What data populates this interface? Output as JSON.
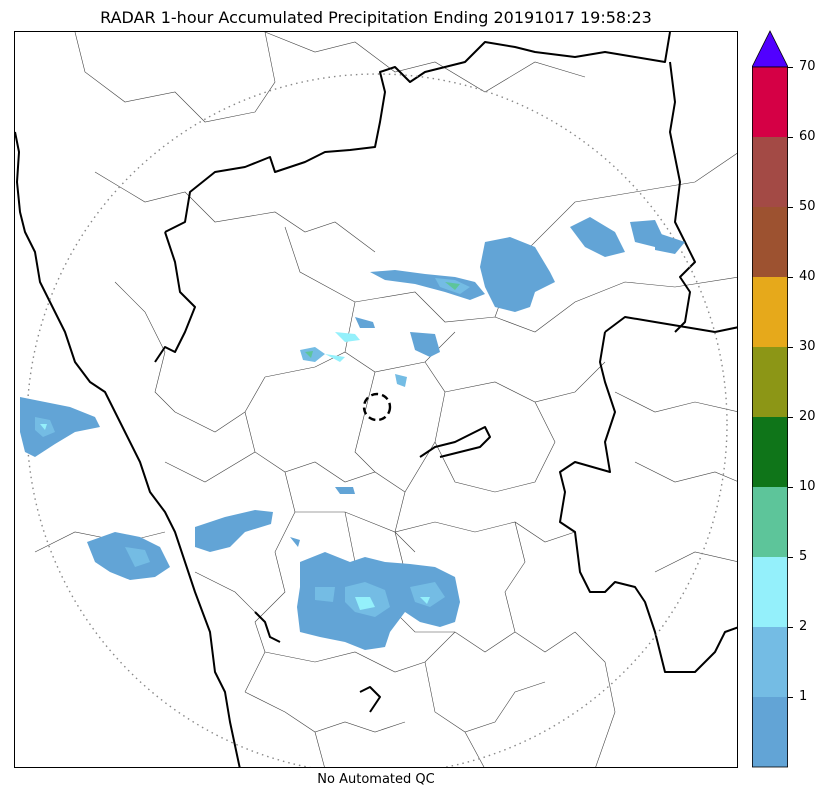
{
  "title": "RADAR 1-hour Accumulated Precipitation Ending 20191017 19:58:23",
  "footer_note": "No Automated QC",
  "colorbar": {
    "ticks": [
      "1",
      "2",
      "5",
      "10",
      "20",
      "30",
      "40",
      "50",
      "60",
      "70"
    ],
    "bins": [
      {
        "upper": 1,
        "color": "#62A4D6"
      },
      {
        "upper": 2,
        "color": "#74BCE4"
      },
      {
        "upper": 5,
        "color": "#94F0FB"
      },
      {
        "upper": 10,
        "color": "#5DC59A"
      },
      {
        "upper": 20,
        "color": "#0F7519"
      },
      {
        "upper": 30,
        "color": "#8C9616"
      },
      {
        "upper": 40,
        "color": "#E6A91B"
      },
      {
        "upper": 50,
        "color": "#9D5230"
      },
      {
        "upper": 60,
        "color": "#A34A45"
      },
      {
        "upper": 70,
        "color": "#D50045"
      }
    ],
    "extend_max_color": "#5100FF"
  },
  "map_colors": {
    "state_border": "#000000",
    "district_border": "#444444",
    "range_ring": "#888888",
    "radar_site": "#000000"
  }
}
